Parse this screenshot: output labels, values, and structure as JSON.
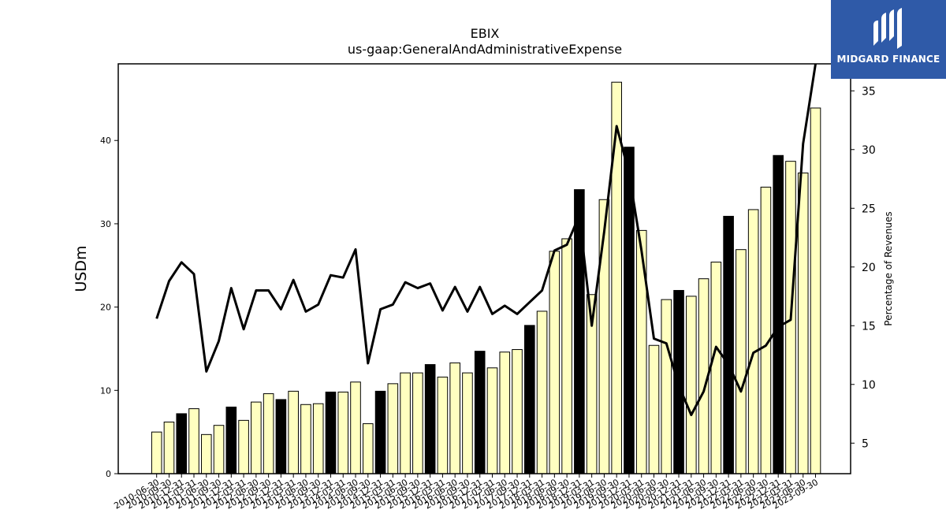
{
  "chart_data": {
    "type": "bar",
    "title": "EBIX",
    "subtitle": "us-gaap:GeneralAndAdministrativeExpense",
    "ylabel": "USDm",
    "y2label": "Percentage of Revenues",
    "ylim": [
      0,
      49.2
    ],
    "y2lim": [
      2.4,
      37.3
    ],
    "yticks": [
      0,
      10,
      20,
      30,
      40
    ],
    "y2ticks": [
      5,
      10,
      15,
      20,
      25,
      30,
      35
    ],
    "colors": {
      "bar_default": "#ffffc0",
      "bar_highlight": "#000000",
      "line": "#000000"
    },
    "categories": [
      "2010-06-30",
      "2010-09-30",
      "2010-12-31",
      "2011-03-31",
      "2011-06-30",
      "2011-09-30",
      "2011-12-31",
      "2012-03-31",
      "2012-06-30",
      "2012-09-30",
      "2012-12-31",
      "2013-03-31",
      "2013-06-30",
      "2013-09-30",
      "2013-12-31",
      "2014-03-31",
      "2014-06-30",
      "2014-09-30",
      "2014-12-31",
      "2015-03-31",
      "2015-06-30",
      "2015-09-30",
      "2015-12-31",
      "2016-03-31",
      "2016-06-30",
      "2016-09-30",
      "2016-12-31",
      "2017-03-31",
      "2017-06-30",
      "2017-09-30",
      "2017-12-31",
      "2018-03-31",
      "2018-06-30",
      "2018-09-30",
      "2018-12-31",
      "2019-03-31",
      "2019-06-30",
      "2019-09-30",
      "2019-12-31",
      "2020-03-31",
      "2020-06-30",
      "2020-09-30",
      "2020-12-31",
      "2021-03-31",
      "2021-06-30",
      "2021-09-30",
      "2021-12-31",
      "2022-03-31",
      "2022-06-30",
      "2022-09-30",
      "2022-12-31",
      "2023-03-31",
      "2023-06-30",
      "2023-09-30"
    ],
    "series": [
      {
        "kind": "bar",
        "values": [
          5.0,
          6.2,
          7.2,
          7.8,
          4.7,
          5.8,
          8.0,
          6.4,
          8.6,
          9.6,
          8.9,
          9.9,
          8.3,
          8.4,
          9.8,
          9.8,
          11.0,
          6.0,
          9.9,
          10.8,
          12.1,
          12.1,
          13.1,
          11.6,
          13.3,
          12.1,
          14.7,
          12.7,
          14.6,
          14.9,
          17.8,
          19.5,
          26.7,
          28.2,
          34.1,
          21.5,
          32.9,
          47.0,
          39.2,
          29.2,
          15.4,
          20.9,
          22.0,
          21.3,
          23.4,
          25.4,
          30.9,
          26.9,
          31.7,
          34.4,
          38.2,
          37.5,
          36.1,
          43.9
        ],
        "highlight": [
          false,
          false,
          true,
          false,
          false,
          false,
          true,
          false,
          false,
          false,
          true,
          false,
          false,
          false,
          true,
          false,
          false,
          false,
          true,
          false,
          false,
          false,
          true,
          false,
          false,
          false,
          true,
          false,
          false,
          false,
          true,
          false,
          false,
          false,
          true,
          false,
          false,
          false,
          true,
          false,
          false,
          false,
          true,
          false,
          false,
          false,
          true,
          false,
          false,
          false,
          true,
          false,
          false,
          false
        ]
      },
      {
        "kind": "line",
        "axis": "right",
        "values": [
          15.6,
          18.8,
          20.4,
          19.4,
          11.1,
          13.7,
          18.2,
          14.7,
          18.0,
          18.0,
          16.4,
          18.9,
          16.2,
          16.8,
          19.3,
          19.1,
          21.5,
          11.8,
          16.4,
          16.8,
          18.7,
          18.2,
          18.6,
          16.3,
          18.3,
          16.2,
          18.3,
          16.0,
          16.7,
          16.0,
          17.0,
          18.0,
          21.4,
          21.9,
          24.4,
          15.0,
          23.0,
          32.0,
          28.0,
          21.4,
          13.9,
          13.5,
          9.9,
          7.4,
          9.4,
          13.2,
          11.7,
          9.4,
          12.7,
          13.3,
          14.9,
          15.5,
          30.5,
          37.3
        ]
      }
    ]
  },
  "logo": {
    "text": "MIDGARD FINANCE"
  }
}
